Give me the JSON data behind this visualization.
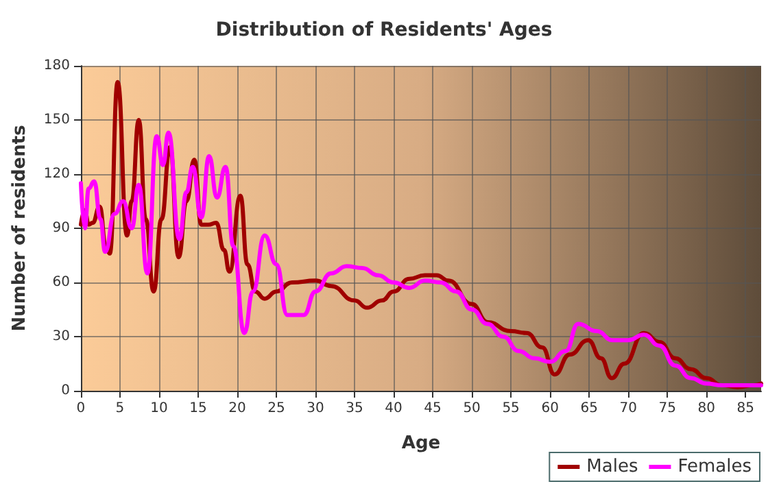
{
  "chart_data": {
    "type": "line",
    "title": "Distribution of Residents' Ages",
    "xlabel": "Age",
    "ylabel": "Number of residents",
    "xlim": [
      0,
      87
    ],
    "xticks": [
      0,
      5,
      10,
      15,
      20,
      25,
      30,
      35,
      40,
      45,
      50,
      55,
      60,
      65,
      70,
      75,
      80,
      85
    ],
    "ylim": [
      0,
      180
    ],
    "yticks": [
      0,
      30,
      60,
      90,
      120,
      150,
      180
    ],
    "grid": true,
    "legend": "bottom right",
    "marker": "none",
    "line_style": "solid",
    "series": [
      {
        "name": "Males",
        "color": "#a00000",
        "x": [
          0,
          0.5,
          1,
          1.5,
          2.4,
          3.2,
          3.7,
          4.7,
          5.9,
          6.5,
          7.4,
          8.3,
          9.3,
          10.3,
          11.4,
          12.5,
          13.5,
          14.5,
          15.4,
          16.3,
          17.3,
          18.3,
          19,
          20.4,
          21.3,
          22.3,
          23.5,
          25,
          27,
          30,
          32,
          35,
          36.6,
          38.5,
          40,
          42,
          44,
          45.5,
          47,
          50,
          52,
          55,
          57,
          59,
          60.6,
          62.5,
          64.9,
          66.5,
          67.9,
          69.5,
          72,
          74,
          76,
          78,
          80,
          82,
          84,
          86,
          87
        ],
        "values": [
          92,
          100,
          92,
          93,
          102,
          80,
          76,
          171,
          86,
          105,
          150,
          95,
          55,
          95,
          135,
          74,
          105,
          128,
          92,
          92,
          93,
          78,
          66,
          108,
          70,
          55,
          51,
          55,
          60,
          61,
          58,
          50,
          46,
          50,
          55,
          62,
          64,
          64,
          61,
          48,
          38,
          33,
          32,
          24,
          9,
          20,
          28,
          18,
          7,
          15,
          32,
          27,
          18,
          12,
          7,
          3,
          2,
          3,
          4
        ]
      },
      {
        "name": "Females",
        "color": "#ff00ff",
        "x": [
          0,
          0.5,
          1,
          1.7,
          2.5,
          3.1,
          4.3,
          5.4,
          6.5,
          7.4,
          8.5,
          9.7,
          10.5,
          11.2,
          12.6,
          13.5,
          14.3,
          15.4,
          16.4,
          17.4,
          18.5,
          19.5,
          20.9,
          22,
          23.5,
          25,
          26.4,
          28.5,
          30,
          32,
          34,
          36,
          38,
          40,
          42,
          44,
          46,
          48,
          50,
          52,
          54,
          56,
          58,
          60,
          62,
          63.6,
          66,
          68,
          70,
          72,
          74,
          76,
          78,
          80,
          82,
          84,
          86,
          87
        ],
        "values": [
          115,
          90,
          112,
          116,
          95,
          77,
          98,
          105,
          90,
          114,
          65,
          141,
          125,
          143,
          84,
          110,
          124,
          96,
          130,
          107,
          124,
          80,
          32,
          55,
          86,
          70,
          42,
          42,
          55,
          65,
          69,
          68,
          64,
          60,
          57,
          61,
          60,
          55,
          45,
          37,
          30,
          22,
          18,
          16,
          22,
          37,
          33,
          28,
          28,
          31,
          25,
          14,
          7,
          4,
          3,
          3,
          3,
          3
        ]
      }
    ]
  }
}
